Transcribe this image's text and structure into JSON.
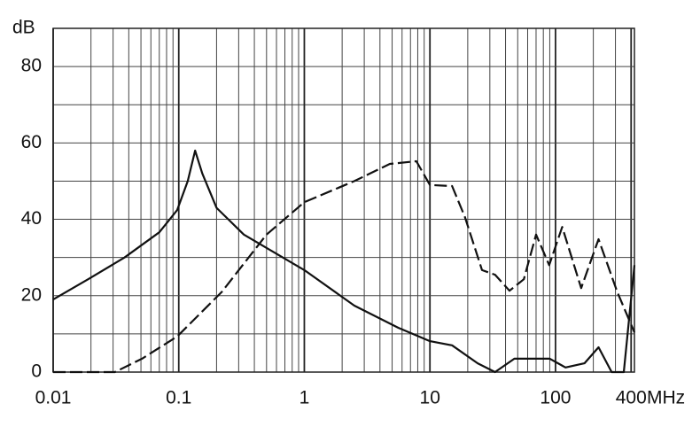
{
  "chart_data": {
    "type": "line",
    "log_x": true,
    "grid": true,
    "x_label": "MHz",
    "y_label": "dB",
    "xlim": [
      0.01,
      425
    ],
    "ylim": [
      0,
      90
    ],
    "xticks": [
      0.01,
      0.1,
      1,
      10,
      100,
      400
    ],
    "yticks": [
      0,
      20,
      40,
      60,
      80
    ],
    "x_minor_grid": [
      0.02,
      0.03,
      0.04,
      0.05,
      0.06,
      0.07,
      0.08,
      0.09,
      0.2,
      0.3,
      0.4,
      0.5,
      0.6,
      0.7,
      0.8,
      0.9,
      2,
      3,
      4,
      5,
      6,
      7,
      8,
      9,
      20,
      30,
      40,
      50,
      60,
      70,
      80,
      90,
      200,
      300
    ],
    "y_minor_grid": [
      10,
      30,
      50,
      70
    ],
    "series": [
      {
        "color": "#111111",
        "style": "solid",
        "x": [
          0.01,
          0.019,
          0.037,
          0.07,
          0.097,
          0.118,
          0.135,
          0.154,
          0.2,
          0.33,
          1,
          2.5,
          5.6,
          10,
          15,
          24,
          33,
          47,
          90,
          120,
          170,
          220,
          280,
          350,
          425
        ],
        "values": [
          19,
          24.3,
          30,
          36.6,
          42.4,
          50,
          58,
          52,
          43,
          36,
          26.7,
          17.4,
          11.6,
          8.1,
          7,
          2.3,
          0,
          3.5,
          3.5,
          1.2,
          2.3,
          6.5,
          0,
          0,
          28
        ]
      },
      {
        "color": "#111111",
        "style": "dashed",
        "x": [
          0.01,
          0.031,
          0.051,
          0.097,
          0.22,
          0.5,
          1,
          2.5,
          4.8,
          7.8,
          10,
          15,
          19,
          26,
          33,
          43,
          56,
          70,
          89,
          113,
          160,
          220,
          310,
          425
        ],
        "values": [
          0,
          0,
          3.5,
          9.3,
          21,
          36,
          44.5,
          50,
          54.5,
          55.2,
          49,
          48.7,
          40.6,
          26.7,
          25.5,
          21.3,
          24.3,
          36,
          28,
          38,
          22,
          34.8,
          21,
          10.4
        ]
      }
    ]
  }
}
